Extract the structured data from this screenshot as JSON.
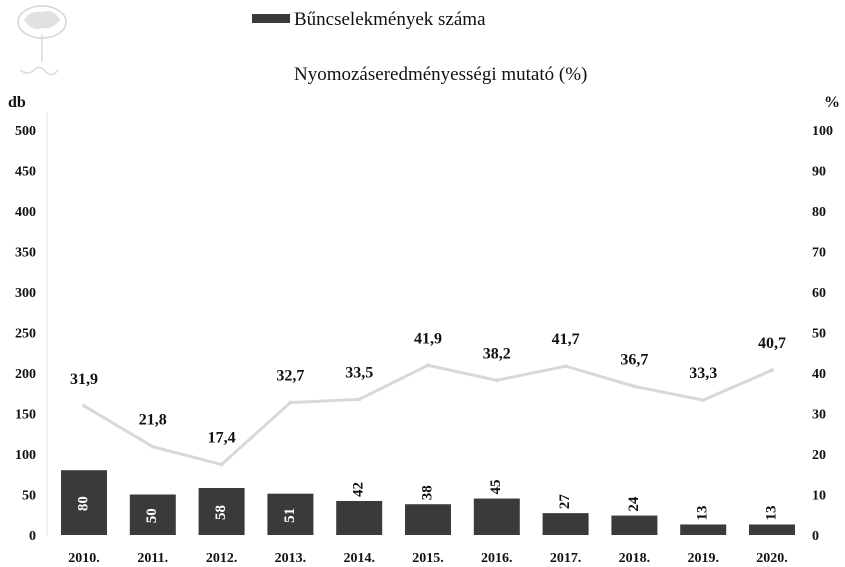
{
  "logo": {
    "icon": "tree-stamp-icon",
    "text": ""
  },
  "chart_data": {
    "type": "bar",
    "categories": [
      "2010.",
      "2011.",
      "2012.",
      "2013.",
      "2014.",
      "2015.",
      "2016.",
      "2017.",
      "2018.",
      "2019.",
      "2020."
    ],
    "series": [
      {
        "name": "Bűncselekmények száma",
        "type": "bar",
        "axis": "left",
        "values": [
          80,
          50,
          58,
          51,
          42,
          38,
          45,
          27,
          24,
          13,
          13
        ],
        "labels": [
          "80",
          "50",
          "58",
          "51",
          "42",
          "38",
          "45",
          "27",
          "24",
          "13",
          "13"
        ],
        "color": "#3a3a3a"
      },
      {
        "name": "Nyomozáseredményességi mutató (%)",
        "type": "line",
        "axis": "right",
        "values": [
          31.9,
          21.8,
          17.4,
          32.7,
          33.5,
          41.9,
          38.2,
          41.7,
          36.7,
          33.3,
          40.7
        ],
        "labels": [
          "31,9",
          "21,8",
          "17,4",
          "32,7",
          "33,5",
          "41,9",
          "38,2",
          "41,7",
          "36,7",
          "33,3",
          "40,7"
        ],
        "color": "#d8d8d8"
      }
    ],
    "y_left": {
      "label": "db",
      "ylim": [
        0,
        500
      ],
      "ticks": [
        0,
        50,
        100,
        150,
        200,
        250,
        300,
        350,
        400,
        450,
        500
      ]
    },
    "y_right": {
      "label": "%",
      "ylim": [
        0,
        100
      ],
      "ticks": [
        0,
        10,
        20,
        30,
        40,
        50,
        60,
        70,
        80,
        90,
        100
      ]
    },
    "legend": "top-center",
    "grid": false
  }
}
